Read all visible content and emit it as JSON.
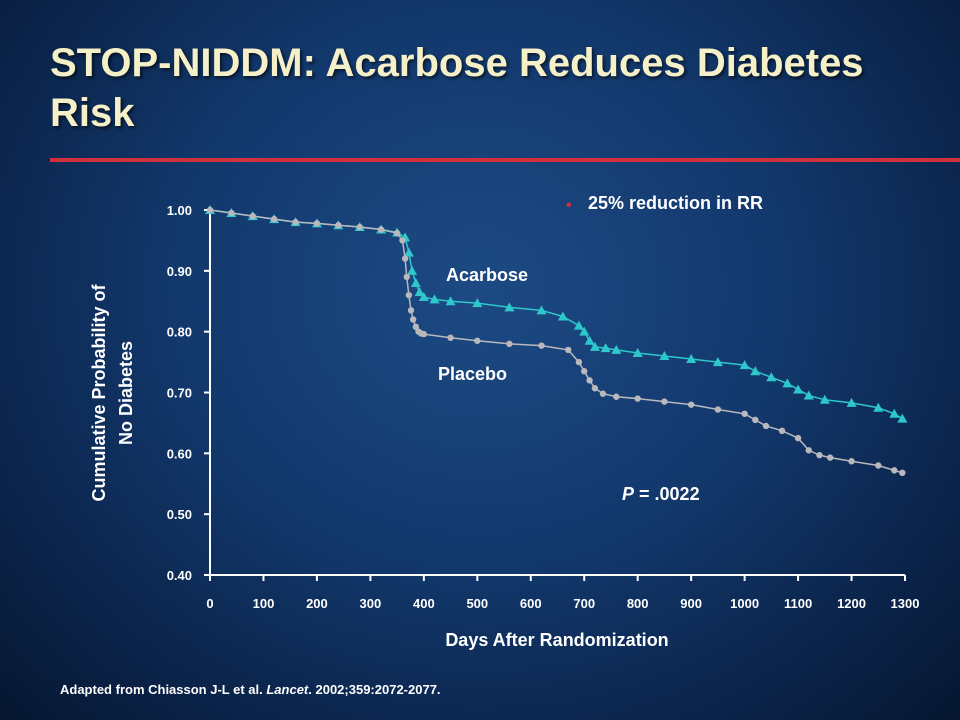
{
  "slide": {
    "title": "STOP-NIDDM: Acarbose Reduces Diabetes Risk",
    "footnote_prefix": "Adapted from Chiasson J-L et al. ",
    "footnote_journal": "Lancet",
    "footnote_suffix": ". 2002;359:2072-2077."
  },
  "chart_data": {
    "type": "line",
    "xlabel": "Days After Randomization",
    "ylabel_line1": "Cumulative Probability of",
    "ylabel_line2": "No Diabetes",
    "xlim": [
      0,
      1300
    ],
    "ylim": [
      0.4,
      1.0
    ],
    "x_ticks": [
      "0",
      "100",
      "200",
      "300",
      "400",
      "500",
      "600",
      "700",
      "800",
      "900",
      "1000",
      "1100",
      "1200",
      "1300"
    ],
    "y_ticks": [
      "0.40",
      "0.50",
      "0.60",
      "0.70",
      "0.80",
      "0.90",
      "1.00"
    ],
    "grid": false,
    "annotations": {
      "bullet": "•",
      "reduction": "25% reduction in RR",
      "p_italic": "P",
      "p_rest": " = .0022"
    },
    "colors": {
      "acarbose": "#2ec7cc",
      "placebo": "#b9b9bd"
    },
    "series": [
      {
        "name": "Acarbose",
        "x": [
          0,
          40,
          80,
          120,
          160,
          200,
          240,
          280,
          320,
          350,
          365,
          372,
          378,
          385,
          392,
          400,
          420,
          450,
          500,
          560,
          620,
          660,
          690,
          700,
          710,
          720,
          740,
          760,
          800,
          850,
          900,
          950,
          1000,
          1020,
          1050,
          1080,
          1100,
          1120,
          1150,
          1200,
          1250,
          1280,
          1295
        ],
        "y": [
          1.0,
          0.995,
          0.99,
          0.985,
          0.98,
          0.978,
          0.975,
          0.972,
          0.968,
          0.963,
          0.955,
          0.93,
          0.9,
          0.88,
          0.865,
          0.857,
          0.853,
          0.85,
          0.847,
          0.84,
          0.835,
          0.825,
          0.81,
          0.8,
          0.785,
          0.775,
          0.773,
          0.77,
          0.765,
          0.76,
          0.755,
          0.75,
          0.745,
          0.735,
          0.725,
          0.715,
          0.705,
          0.695,
          0.688,
          0.683,
          0.675,
          0.665,
          0.657
        ]
      },
      {
        "name": "Placebo",
        "x": [
          0,
          40,
          80,
          120,
          160,
          200,
          240,
          280,
          320,
          350,
          360,
          365,
          368,
          372,
          376,
          380,
          385,
          390,
          395,
          400,
          450,
          500,
          560,
          620,
          670,
          690,
          700,
          710,
          720,
          735,
          760,
          800,
          850,
          900,
          950,
          1000,
          1020,
          1040,
          1070,
          1100,
          1120,
          1140,
          1160,
          1200,
          1250,
          1280,
          1295
        ],
        "y": [
          1.0,
          0.995,
          0.99,
          0.985,
          0.98,
          0.978,
          0.975,
          0.972,
          0.968,
          0.962,
          0.95,
          0.92,
          0.89,
          0.86,
          0.835,
          0.82,
          0.808,
          0.8,
          0.797,
          0.796,
          0.79,
          0.785,
          0.78,
          0.777,
          0.77,
          0.75,
          0.735,
          0.72,
          0.707,
          0.698,
          0.693,
          0.69,
          0.685,
          0.68,
          0.672,
          0.665,
          0.655,
          0.645,
          0.637,
          0.625,
          0.605,
          0.597,
          0.593,
          0.587,
          0.58,
          0.572,
          0.568
        ]
      }
    ]
  }
}
